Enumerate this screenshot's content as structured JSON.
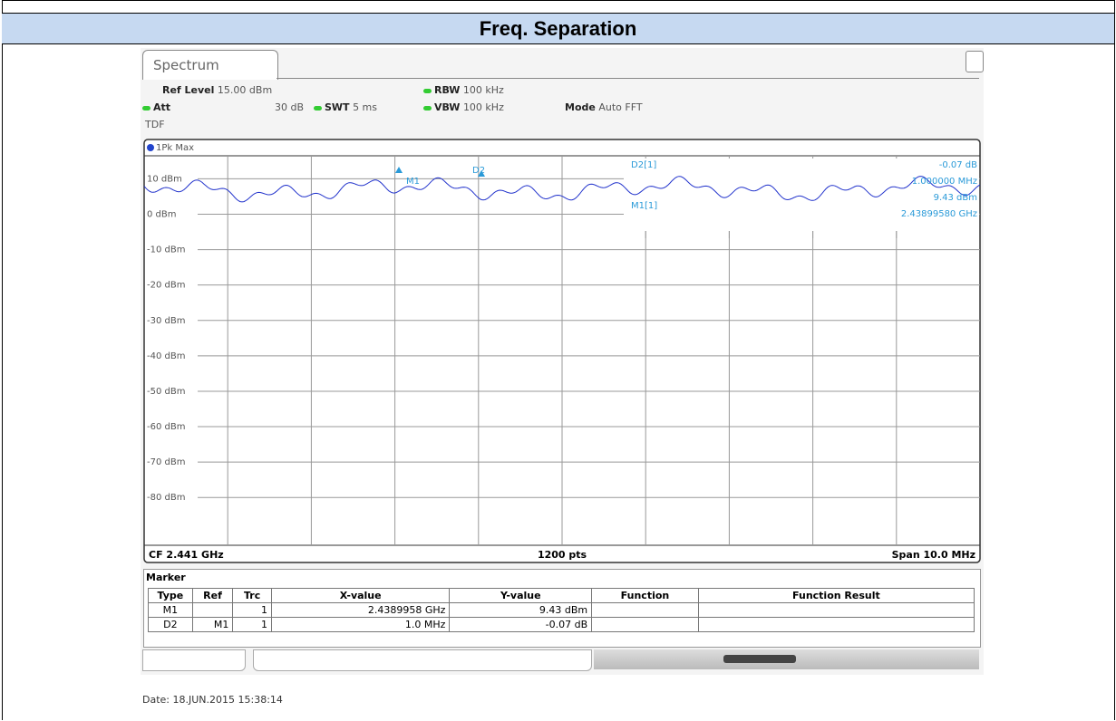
{
  "header": {
    "title": "Freq. Separation"
  },
  "screen": {
    "tab": "Spectrum",
    "settings": [
      {
        "label": "Ref Level",
        "value": "15.00 dBm"
      },
      {
        "label": "Att",
        "value": "30 dB"
      },
      {
        "label": "SWT",
        "value": "5 ms"
      },
      {
        "label": "RBW",
        "value": "100 kHz"
      },
      {
        "label": "VBW",
        "value": "100 kHz"
      },
      {
        "label": "Mode",
        "value": "Auto FFT"
      }
    ],
    "tdf": "TDF",
    "trace_label": "1Pk Max",
    "y_labels": [
      "10 dBm",
      "0 dBm",
      "-10 dBm",
      "-20 dBm",
      "-30 dBm",
      "-40 dBm",
      "-50 dBm",
      "-60 dBm",
      "-70 dBm",
      "-80 dBm"
    ],
    "marker_tags": [
      "M1",
      "D2"
    ],
    "readout": {
      "d2": "D2[1]",
      "d2_level": "-0.07 dB",
      "d2_freq": "1.000000 MHz",
      "m1": "M1[1]",
      "m1_level": "9.43 dBm",
      "m1_freq": "2.43899580 GHz"
    },
    "footer": {
      "left": "CF 2.441 GHz",
      "center": "1200 pts",
      "right": "Span 10.0 MHz"
    },
    "marker_table": {
      "title": "Marker",
      "columns": [
        "Type",
        "Ref",
        "Trc",
        "X-value",
        "Y-value",
        "Function",
        "Function Result"
      ],
      "rows": [
        [
          "M1",
          "",
          "1",
          "2.4389958 GHz",
          "9.43 dBm",
          "",
          ""
        ],
        [
          "D2",
          "M1",
          "1",
          "1.0 MHz",
          "-0.07 dB",
          "",
          ""
        ]
      ]
    }
  },
  "date": "Date: 18.JUN.2015 15:38:14"
}
